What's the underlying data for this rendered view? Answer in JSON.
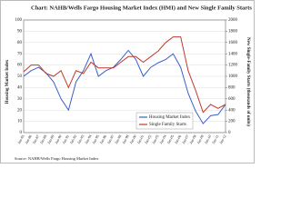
{
  "chart_data": {
    "type": "line",
    "title": "Chart: NAHB/Wells Fargo Housing Market Index (HMI) and New Single Family Starts",
    "y_label": "Housing Market Index",
    "y2_label": "New Single-Family Starts (thousands of units)",
    "source": "Source: NAHB/Wells Fargo Housing Market Index",
    "categories": [
      "Jan-85",
      "Jan-86",
      "Jan-87",
      "Jan-88",
      "Jan-89",
      "Jan-90",
      "Jan-91",
      "Jan-92",
      "Jan-93",
      "Jan-94",
      "Jan-95",
      "Jan-96",
      "Jan-97",
      "Jan-98",
      "Jan-99",
      "Jan-00",
      "Jan-01",
      "Jan-02",
      "Jan-03",
      "Jan-04",
      "Jan-05",
      "Jan-06",
      "Jan-07",
      "Jan-08",
      "Jan-09",
      "Jan-10",
      "Jan-11",
      "Jan-12"
    ],
    "series": [
      {
        "name": "Housing Market Index",
        "color": "#3a5fc8",
        "axis": "y",
        "values": [
          50,
          55,
          58,
          53,
          45,
          30,
          20,
          45,
          55,
          70,
          50,
          55,
          58,
          65,
          73,
          65,
          50,
          58,
          62,
          65,
          70,
          58,
          35,
          19,
          8,
          15,
          16,
          25
        ]
      },
      {
        "name": "Single Family Starts",
        "color": "#c0392b",
        "axis": "y2",
        "values": [
          1080,
          1200,
          1200,
          1050,
          1000,
          1100,
          800,
          1100,
          1050,
          1250,
          1150,
          1150,
          1150,
          1250,
          1350,
          1350,
          1250,
          1350,
          1450,
          1600,
          1700,
          1700,
          1100,
          750,
          360,
          500,
          430,
          500
        ]
      }
    ],
    "ylim": [
      0,
      100
    ],
    "yticks": [
      0,
      10,
      20,
      30,
      40,
      50,
      60,
      70,
      80,
      90,
      100
    ],
    "y2lim": [
      0,
      2000
    ],
    "y2ticks": [
      0,
      200,
      400,
      600,
      800,
      1000,
      1200,
      1400,
      1600,
      1800,
      2000
    ],
    "grid": true
  }
}
